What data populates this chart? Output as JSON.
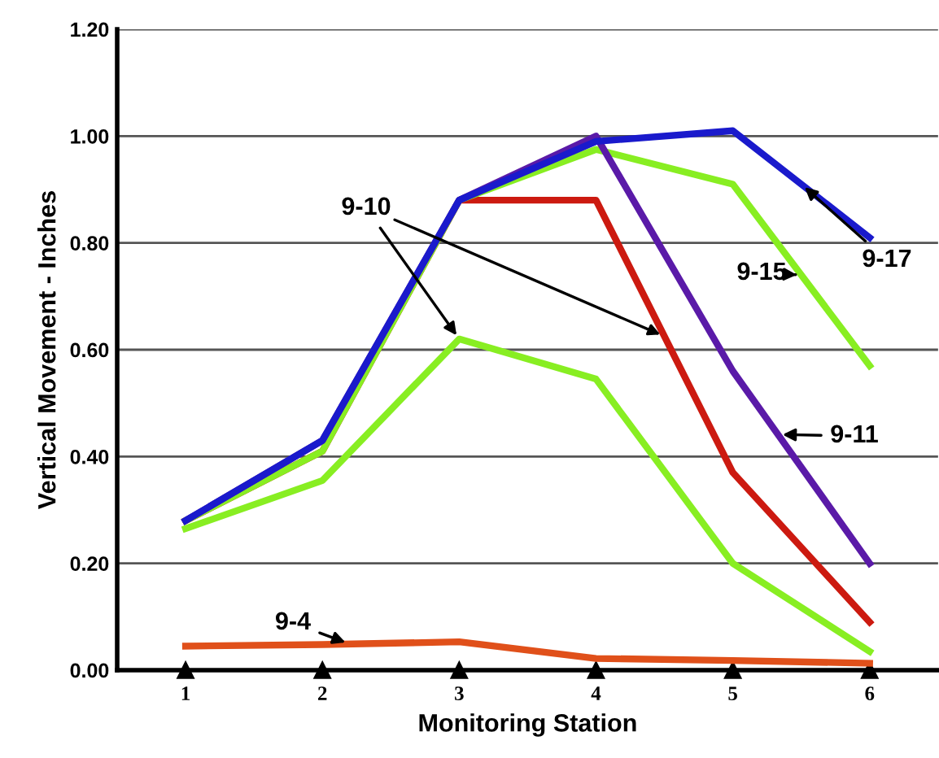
{
  "chart_data": {
    "type": "line",
    "xlabel": "Monitoring Station",
    "ylabel": "Vertical Movement - Inches",
    "categories": [
      "1",
      "2",
      "3",
      "4",
      "5",
      "6"
    ],
    "ylim": [
      0,
      1.2
    ],
    "yticks": [
      {
        "value": 0,
        "label": "0.00"
      },
      {
        "value": 0.2,
        "label": "0.20"
      },
      {
        "value": 0.4,
        "label": "0.40"
      },
      {
        "value": 0.6,
        "label": "0.60"
      },
      {
        "value": 0.8,
        "label": "0.80"
      },
      {
        "value": 1.0,
        "label": "1.00"
      },
      {
        "value": 1.2,
        "label": "1.20"
      }
    ],
    "grid": "y",
    "legend": false,
    "marker": "none",
    "line_style": "solid",
    "series": [
      {
        "name": "9-4",
        "color": "#e0501a",
        "values": [
          0.045,
          0.048,
          0.053,
          0.022,
          0.018,
          0.013
        ]
      },
      {
        "name": "9-10",
        "color": "#88ee22",
        "values": [
          0.265,
          0.355,
          0.62,
          0.545,
          0.2,
          0.035
        ]
      },
      {
        "color": "#cc1a10",
        "values": [
          0.28,
          0.41,
          0.88,
          0.88,
          0.37,
          0.09
        ]
      },
      {
        "name": "9-15",
        "color": "#88ee22",
        "values": [
          0.28,
          0.41,
          0.88,
          0.975,
          0.91,
          0.57
        ]
      },
      {
        "name": "9-11",
        "color": "#5a1aa8",
        "values": [
          0.28,
          0.43,
          0.88,
          1.0,
          0.56,
          0.2
        ]
      },
      {
        "name": "9-17",
        "color": "#1a1acc",
        "values": [
          0.28,
          0.43,
          0.88,
          0.99,
          1.01,
          0.81
        ]
      }
    ]
  }
}
